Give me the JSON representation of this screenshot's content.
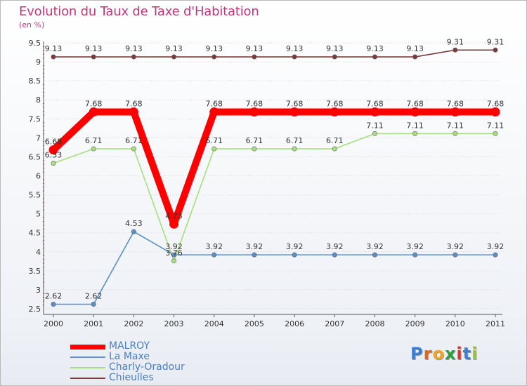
{
  "title": "Evolution du Taux de Taxe d'Habitation",
  "subtitle": "(en %)",
  "logo": {
    "text": "Proxiti"
  },
  "chart_data": {
    "type": "line",
    "x": [
      "2000",
      "2001",
      "2002",
      "2003",
      "2004",
      "2005",
      "2006",
      "2007",
      "2008",
      "2009",
      "2010",
      "2011"
    ],
    "ylim": [
      2.5,
      9.5
    ],
    "yticks": [
      "2.5",
      "3",
      "3.5",
      "4",
      "4.5",
      "5",
      "5.5",
      "6",
      "6.5",
      "7",
      "7.5",
      "8",
      "8.5",
      "9",
      "9.5"
    ],
    "grid": "horizontal",
    "legend_position": "bottom-left",
    "series": [
      {
        "name": "MALROY",
        "color": "#ff0000",
        "values": [
          6.68,
          7.68,
          7.68,
          4.73,
          7.68,
          7.68,
          7.68,
          7.68,
          7.68,
          7.68,
          7.68,
          7.68
        ],
        "labels": [
          "6.68",
          "7.68",
          "7.68",
          "4.73",
          "7.68",
          "7.68",
          "7.68",
          "7.68",
          "7.68",
          "7.68",
          "7.68",
          "7.68"
        ]
      },
      {
        "name": "La Maxe",
        "color": "#5b8fc8",
        "values": [
          2.62,
          2.62,
          4.53,
          3.92,
          3.92,
          3.92,
          3.92,
          3.92,
          3.92,
          3.92,
          3.92,
          3.92
        ],
        "labels": [
          "2.62",
          "2.62",
          "4.53",
          "3.92",
          "3.92",
          "3.92",
          "3.92",
          "3.92",
          "3.92",
          "3.92",
          "3.92",
          "3.92"
        ]
      },
      {
        "name": "Charly-Oradour",
        "color": "#a6df7e",
        "values": [
          6.33,
          6.71,
          6.71,
          3.76,
          6.71,
          6.71,
          6.71,
          6.71,
          7.11,
          7.11,
          7.11,
          7.11
        ],
        "labels": [
          "6.33",
          "6.71",
          "6.71",
          "3.76",
          "6.71",
          "6.71",
          "6.71",
          "6.71",
          "7.11",
          "7.11",
          "7.11",
          "7.11"
        ]
      },
      {
        "name": "Chieulles",
        "color": "#7a3a3a",
        "values": [
          9.13,
          9.13,
          9.13,
          9.13,
          9.13,
          9.13,
          9.13,
          9.13,
          9.13,
          9.13,
          9.31,
          9.31
        ],
        "labels": [
          "9.13",
          "9.13",
          "9.13",
          "9.13",
          "9.13",
          "9.13",
          "9.13",
          "9.13",
          "9.13",
          "9.13",
          "9.31",
          "9.31"
        ]
      }
    ]
  }
}
